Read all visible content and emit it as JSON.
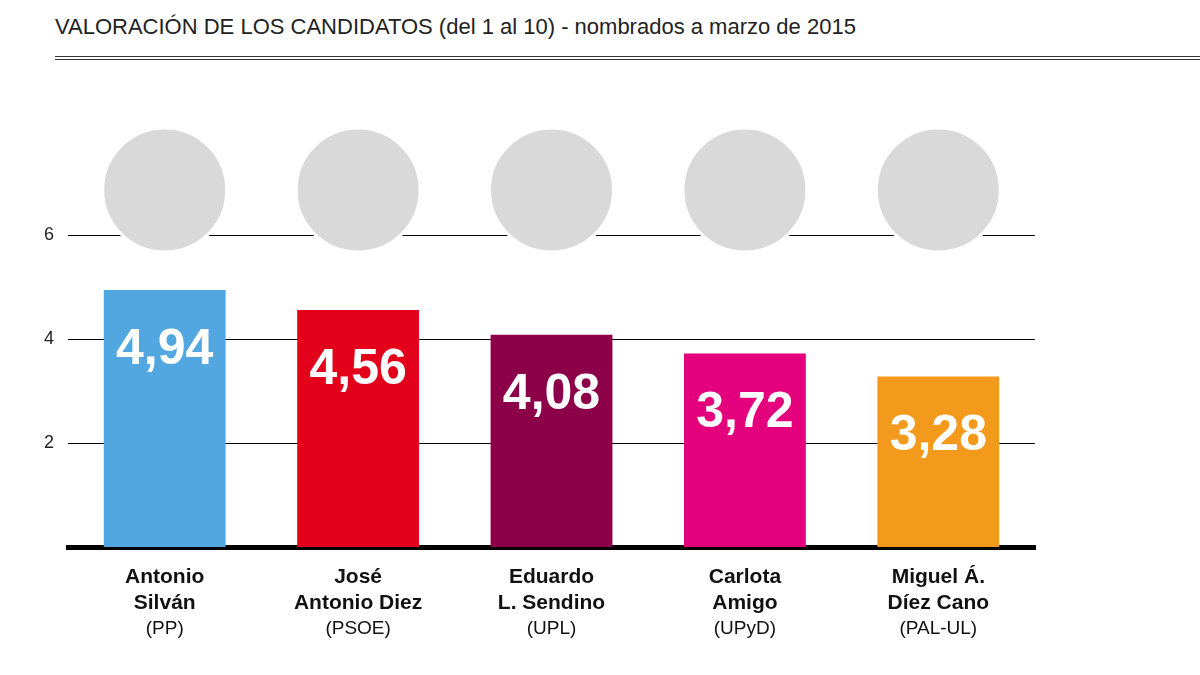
{
  "chart_data": {
    "type": "bar",
    "title": "VALORACIÓN DE LOS CANDIDATOS (del 1 al 10) - nombrados a marzo de 2015",
    "categories": [
      "Antonio Silván (PP)",
      "José Antonio Diez (PSOE)",
      "Eduardo L. Sendino (UPL)",
      "Carlota Amigo (UPyD)",
      "Miguel Á. Díez Cano (PAL-UL)"
    ],
    "values": [
      4.94,
      4.56,
      4.08,
      3.72,
      3.28
    ],
    "value_labels": [
      "4,94",
      "4,56",
      "4,08",
      "3,72",
      "3,28"
    ],
    "colors": [
      "#52a7e0",
      "#e3001b",
      "#8b0049",
      "#e4007c",
      "#f39a1c"
    ],
    "ylim": [
      0,
      6
    ],
    "yticks": [
      2,
      4,
      6
    ],
    "grid": true,
    "data_labels": true
  }
}
